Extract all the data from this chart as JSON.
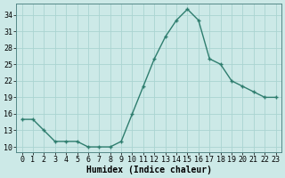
{
  "x": [
    0,
    1,
    2,
    3,
    4,
    5,
    6,
    7,
    8,
    9,
    10,
    11,
    12,
    13,
    14,
    15,
    16,
    17,
    18,
    19,
    20,
    21,
    22,
    23
  ],
  "y": [
    15,
    15,
    13,
    11,
    11,
    11,
    10,
    10,
    10,
    11,
    16,
    21,
    26,
    30,
    33,
    35,
    33,
    26,
    25,
    22,
    21,
    20,
    19,
    19
  ],
  "line_color": "#2e7d6e",
  "marker": "+",
  "bg_color": "#cce9e7",
  "grid_color": "#aad4d1",
  "xlabel": "Humidex (Indice chaleur)",
  "ylim": [
    9,
    36
  ],
  "xlim": [
    -0.5,
    23.5
  ],
  "yticks": [
    10,
    13,
    16,
    19,
    22,
    25,
    28,
    31,
    34
  ],
  "xticks": [
    0,
    1,
    2,
    3,
    4,
    5,
    6,
    7,
    8,
    9,
    10,
    11,
    12,
    13,
    14,
    15,
    16,
    17,
    18,
    19,
    20,
    21,
    22,
    23
  ],
  "label_fontsize": 7,
  "tick_fontsize": 6
}
